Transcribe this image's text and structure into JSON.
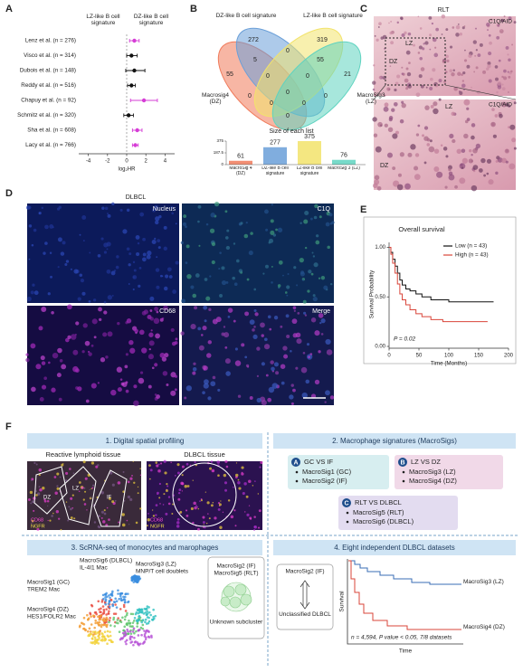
{
  "panel_labels": [
    "A",
    "B",
    "C",
    "D",
    "E",
    "F"
  ],
  "chart_data": [
    {
      "type": "forest",
      "left_label": "LZ-like B cell signature",
      "right_label": "DZ-like B cell signature",
      "categories": [
        "Lenz et al. (n = 276)",
        "Visco et al. (n = 314)",
        "Dubois et al. (n = 148)",
        "Reddy et al. (n = 516)",
        "Chapuy et al. (n = 92)",
        "Schmitz et al. (n = 320)",
        "Sha et al. (n = 608)",
        "Lacy et al. (n = 766)"
      ],
      "values": [
        0.8,
        0.5,
        0.8,
        0.5,
        1.8,
        0.2,
        1.1,
        0.9
      ],
      "ci_low": [
        0.3,
        0,
        -0.1,
        0.1,
        0.4,
        -0.3,
        0.6,
        0.6
      ],
      "ci_high": [
        1.3,
        1.1,
        1.9,
        0.9,
        3.2,
        0.7,
        1.6,
        1.2
      ],
      "colors": [
        "#d63cd6",
        "#111111",
        "#111111",
        "#111111",
        "#d63cd6",
        "#111111",
        "#d63cd6",
        "#d63cd6"
      ],
      "xlim": [
        -5,
        5
      ],
      "xticks": [
        -4,
        -2,
        0,
        2,
        4
      ],
      "xlabel": "log₂HR"
    },
    {
      "type": "venn",
      "sets": [
        {
          "name": "Macrosig4 (DZ)",
          "color": "#f07a5a"
        },
        {
          "name": "DZ-like B cell signature",
          "color": "#6a9fd8"
        },
        {
          "name": "LZ-like B cell signature",
          "color": "#f2e36b"
        },
        {
          "name": "MacroSig3 (LZ)",
          "color": "#5fd3c0"
        }
      ],
      "counts": [
        55,
        272,
        319,
        21,
        5,
        0,
        0,
        0,
        0,
        55,
        0,
        0,
        0,
        0,
        0
      ]
    },
    {
      "type": "bar",
      "title": "Size of each list",
      "categories": [
        "MacroSig 4 (DZ)",
        "DZ-like B cell signature",
        "LZ-like B cell signature",
        "MacroSig 3 (LZ)"
      ],
      "values": [
        61,
        277,
        375,
        76
      ],
      "colors": [
        "#f07a5a",
        "#6a9fd8",
        "#f2e36b",
        "#5fd3c0"
      ],
      "ylim": [
        0,
        375
      ],
      "yticks": [
        0,
        187.5,
        375
      ]
    },
    {
      "type": "step",
      "title": "Overall survival",
      "legend": "upper right",
      "series": [
        {
          "name": "Low (n = 43)",
          "color": "#111111",
          "x": [
            0,
            3,
            6,
            10,
            14,
            18,
            22,
            28,
            35,
            45,
            55,
            70,
            85,
            100,
            120,
            150,
            175
          ],
          "values": [
            1,
            0.95,
            0.88,
            0.81,
            0.74,
            0.67,
            0.62,
            0.58,
            0.56,
            0.53,
            0.5,
            0.47,
            0.47,
            0.45,
            0.45,
            0.45,
            0.45
          ]
        },
        {
          "name": "High (n = 43)",
          "color": "#d9453a",
          "x": [
            0,
            3,
            6,
            10,
            14,
            18,
            22,
            28,
            35,
            45,
            55,
            70,
            90,
            120,
            165
          ],
          "values": [
            1,
            0.93,
            0.84,
            0.74,
            0.63,
            0.53,
            0.47,
            0.42,
            0.37,
            0.33,
            0.3,
            0.27,
            0.25,
            0.25,
            0.25
          ]
        }
      ],
      "xlim": [
        0,
        200
      ],
      "xticks": [
        0,
        50,
        100,
        150,
        200
      ],
      "ylim": [
        0,
        1.05
      ],
      "yticks": [
        {
          "value": 0,
          "label": "0.00"
        },
        {
          "value": 0.5,
          "label": "0.50"
        },
        {
          "value": 1,
          "label": "1.00"
        }
      ],
      "xlabel": "Time (Months)",
      "ylabel": "Survival Probability",
      "annotation": "P = 0.02"
    }
  ],
  "panel_c": {
    "title": "RLT",
    "stain": "C1Q/AID",
    "regions": [
      "LZ",
      "DZ"
    ]
  },
  "panel_d": {
    "title": "DLBCL",
    "channels": [
      "Nucleus",
      "C1Q",
      "CD68",
      "Merge"
    ]
  },
  "panel_f": {
    "s1": {
      "title": "1. Digital spatial profiling",
      "tissues": [
        "Reactive lymphoid tissue",
        "DLBCL tissue"
      ],
      "regions": [
        "DZ",
        "LZ",
        "IF"
      ],
      "markers": [
        "CD68",
        "NGFR"
      ]
    },
    "s2": {
      "title": "2. Macrophage signatures (MacroSigs)",
      "groups": [
        {
          "badge": "A",
          "title": "GC VS IF",
          "items": [
            "MacroSig1 (GC)",
            "MacroSig2 (IF)"
          ]
        },
        {
          "badge": "B",
          "title": "LZ VS DZ",
          "items": [
            "MacroSig3 (LZ)",
            "MacroSig4 (DZ)"
          ]
        },
        {
          "badge": "C",
          "title": "RLT VS DLBCL",
          "items": [
            "MacroSig5 (RLT)",
            "MacroSig6 (DLBCL)"
          ]
        }
      ]
    },
    "s3": {
      "title": "3. ScRNA-seq of monocytes and marophages",
      "clusters": [
        "MacroSig6 (DLBCL)",
        "IL-4I1 Mac",
        "MacroSig3 (LZ)",
        "MNP/T cell doublets",
        "MacroSig1 (GC)",
        "TREM2 Mac",
        "MacroSig4 (DZ)",
        "HES1/FOLR2 Mac"
      ],
      "box": [
        "MacroSig2 (IF)",
        "MacroSig5 (RLT)",
        "Unknown subcluster"
      ]
    },
    "s4": {
      "title": "4. Eight independent DLBCL datasets",
      "left": [
        "MacroSig2 (IF)",
        "Unclassified DLBCL"
      ],
      "ylabel": "Survival",
      "xlabel": "Time",
      "curves": [
        "MacroSig3 (LZ)",
        "MacroSig4 (DZ)"
      ],
      "note": "n = 4,594, P value < 0.05, 7/8 datasets"
    }
  }
}
